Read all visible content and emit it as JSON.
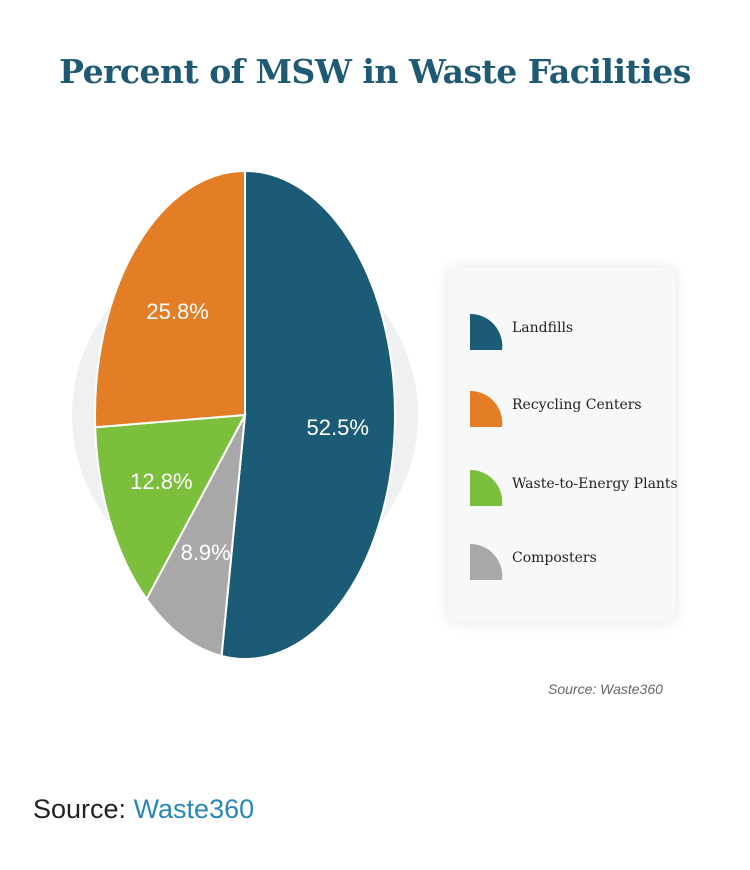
{
  "chart_data": {
    "type": "pie",
    "title": "Percent of MSW in Waste Facilities",
    "slices": [
      {
        "label": "Landfills",
        "value": 52.5,
        "display": "52.5%",
        "color": "#1b5b76"
      },
      {
        "label": "Composters",
        "value": 8.9,
        "display": "8.9%",
        "color": "#a8a8a8"
      },
      {
        "label": "Waste-to-Energy Plants",
        "value": 12.8,
        "display": "12.8%",
        "color": "#7bbf3d"
      },
      {
        "label": "Recycling Centers",
        "value": 25.8,
        "display": "25.8%",
        "color": "#e37e27"
      }
    ],
    "legend_order": [
      "Landfills",
      "Recycling Centers",
      "Waste-to-Energy Plants",
      "Composters"
    ],
    "legend_placement": "right",
    "source_note": "Source: Waste360"
  },
  "caption": {
    "prefix": "Source: ",
    "link_text": "Waste360"
  }
}
